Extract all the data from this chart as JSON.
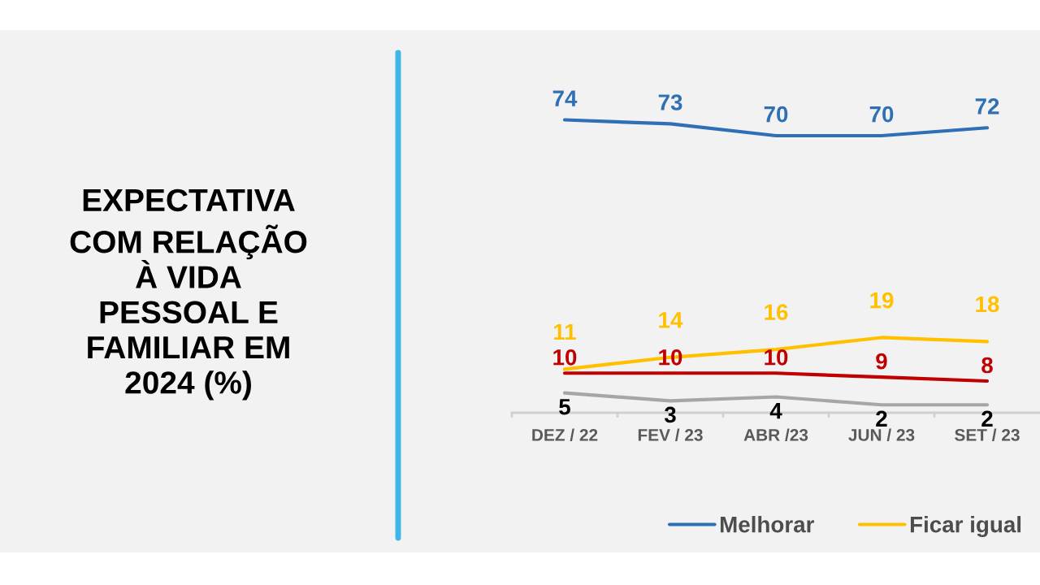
{
  "chart_data": {
    "type": "line",
    "title": "EXPECTATIVA\nCOM RELAÇÃO\nÀ VIDA\nPESSOAL E\nFAMILIAR EM\n2024 (%)",
    "categories": [
      "DEZ / 22",
      "FEV / 23",
      "ABR /23",
      "JUN / 23",
      "SET / 23"
    ],
    "series": [
      {
        "name": "Melhorar",
        "color": "#2e6fb5",
        "values": [
          74,
          73,
          70,
          70,
          72
        ]
      },
      {
        "name": "Ficar igual",
        "color": "#ffc000",
        "values": [
          11,
          14,
          16,
          19,
          18
        ]
      },
      {
        "color": "#c00000",
        "values": [
          10,
          10,
          10,
          9,
          8
        ]
      },
      {
        "color": "#a6a6a6",
        "values": [
          5,
          3,
          4,
          2,
          2
        ]
      }
    ],
    "tick_labels": "x",
    "data_labels": true,
    "legend": "bottom",
    "grid": false,
    "marker": "none",
    "line_style": "solid"
  }
}
